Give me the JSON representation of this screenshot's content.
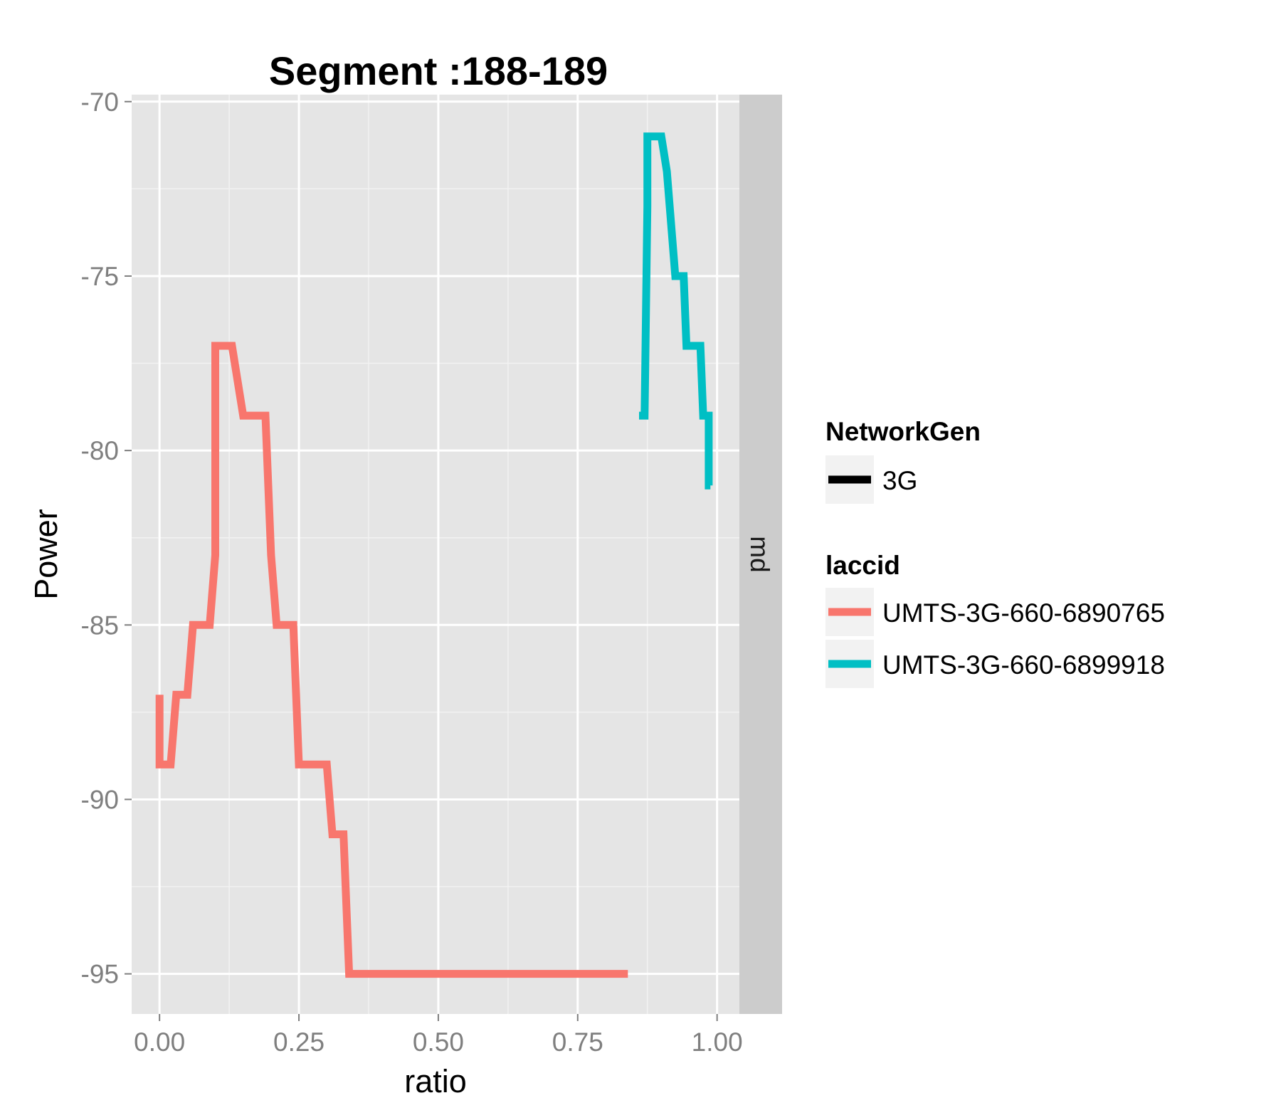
{
  "chart_data": {
    "type": "line",
    "title": "Segment :188-189",
    "xlabel": "ratio",
    "ylabel": "Power",
    "xlim": [
      -0.05,
      1.04
    ],
    "ylim": [
      -96.15,
      -69.8
    ],
    "x_ticks": [
      0.0,
      0.25,
      0.5,
      0.75,
      1.0
    ],
    "x_tick_labels": [
      "0.00",
      "0.25",
      "0.50",
      "0.75",
      "1.00"
    ],
    "y_ticks": [
      -70,
      -75,
      -80,
      -85,
      -90,
      -95
    ],
    "y_tick_labels": [
      "-70",
      "-75",
      "-80",
      "-85",
      "-90",
      "-95"
    ],
    "grid": true,
    "facet_strip": "md",
    "legend_position": "right",
    "legends": [
      {
        "title": "NetworkGen",
        "entries": [
          {
            "label": "3G",
            "color": "#000000"
          }
        ]
      },
      {
        "title": "laccid",
        "entries": [
          {
            "label": "UMTS-3G-660-6890765",
            "color": "#F8766D"
          },
          {
            "label": "UMTS-3G-660-6899918",
            "color": "#00BFC4"
          }
        ]
      }
    ],
    "series": [
      {
        "name": "UMTS-3G-660-6890765",
        "color": "#F8766D",
        "x": [
          0.0,
          0.0,
          0.02,
          0.03,
          0.05,
          0.06,
          0.09,
          0.1,
          0.1,
          0.13,
          0.15,
          0.19,
          0.2,
          0.21,
          0.24,
          0.25,
          0.3,
          0.31,
          0.33,
          0.34,
          0.84
        ],
        "y": [
          -87,
          -89,
          -89,
          -87,
          -87,
          -85,
          -85,
          -83,
          -77,
          -77,
          -79,
          -79,
          -83,
          -85,
          -85,
          -89,
          -89,
          -91,
          -91,
          -95,
          -95
        ]
      },
      {
        "name": "UMTS-3G-660-6899918",
        "color": "#00BFC4",
        "x": [
          0.86,
          0.87,
          0.875,
          0.875,
          0.9,
          0.91,
          0.92,
          0.925,
          0.94,
          0.945,
          0.955,
          0.97,
          0.975,
          0.985,
          0.985,
          0.988
        ],
        "y": [
          -79,
          -79,
          -73,
          -71,
          -71,
          -72,
          -74,
          -75,
          -75,
          -77,
          -77,
          -77,
          -79,
          -79,
          -81,
          -81
        ]
      }
    ]
  }
}
